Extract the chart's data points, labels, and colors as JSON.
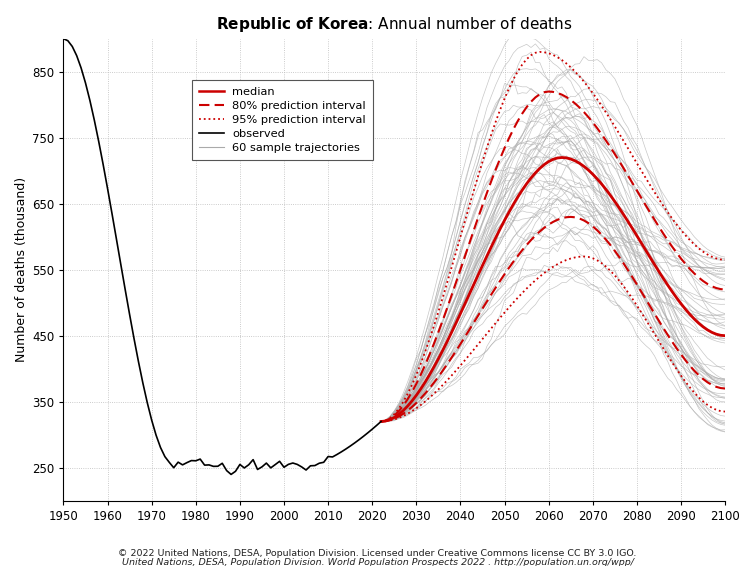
{
  "title_bold": "Republic of Korea",
  "title_regular": ": Annual number of deaths",
  "ylabel": "Number of deaths (thousand)",
  "footnote1": "© 2022 United Nations, DESA, Population Division. Licensed under Creative Commons license CC BY 3.0 IGO.",
  "footnote2": "United Nations, DESA, Population Division. World Population Prospects 2022 . http://population.un.org/wpp/",
  "xlim": [
    1950,
    2100
  ],
  "ylim": [
    200,
    900
  ],
  "yticks": [
    250,
    350,
    450,
    550,
    650,
    750,
    850
  ],
  "xticks": [
    1950,
    1960,
    1970,
    1980,
    1990,
    2000,
    2010,
    2020,
    2030,
    2040,
    2050,
    2060,
    2070,
    2080,
    2090,
    2100
  ],
  "observed_color": "#000000",
  "median_color": "#cc0000",
  "interval80_color": "#cc0000",
  "interval95_color": "#cc0000",
  "sample_color": "#aaaaaa",
  "background_color": "#ffffff",
  "grid_color": "#bbbbbb"
}
